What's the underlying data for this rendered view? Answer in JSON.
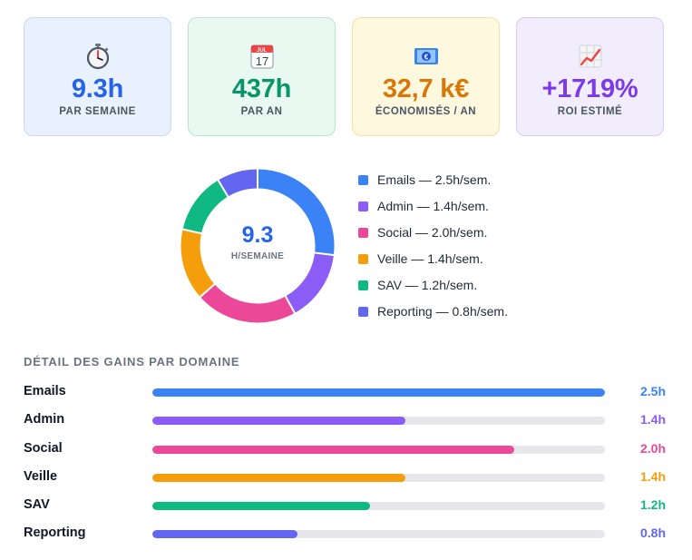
{
  "cards": [
    {
      "icon": "stopwatch-icon",
      "value": "9.3h",
      "label": "PAR SEMAINE",
      "color": "#2563eb",
      "bg": "#eaf1fe",
      "border": "#c7daf8"
    },
    {
      "icon": "calendar-icon",
      "value": "437h",
      "label": "PAR AN",
      "color": "#059669",
      "bg": "#e9f8f0",
      "border": "#b7e8cc"
    },
    {
      "icon": "money-icon",
      "value": "32,7 k€",
      "label": "ÉCONOMISÉS / AN",
      "color": "#d97706",
      "bg": "#fef8df",
      "border": "#f6dfa0"
    },
    {
      "icon": "chart-increasing-icon",
      "value": "+1719%",
      "label": "ROI ESTIMÉ",
      "color": "#7c3aed",
      "bg": "#f1edfd",
      "border": "#d6cbf6"
    }
  ],
  "chart_data": {
    "type": "pie",
    "center_value": "9.3",
    "center_unit": "H/SEMAINE",
    "series": [
      {
        "name": "Emails",
        "value": 2.5,
        "color": "#3b82f6",
        "legend": "Emails — 2.5h/sem."
      },
      {
        "name": "Admin",
        "value": 1.4,
        "color": "#8b5cf6",
        "legend": "Admin — 1.4h/sem."
      },
      {
        "name": "Social",
        "value": 2.0,
        "color": "#ec4899",
        "legend": "Social — 2.0h/sem."
      },
      {
        "name": "Veille",
        "value": 1.4,
        "color": "#f59e0b",
        "legend": "Veille — 1.4h/sem."
      },
      {
        "name": "SAV",
        "value": 1.2,
        "color": "#10b981",
        "legend": "SAV — 1.2h/sem."
      },
      {
        "name": "Reporting",
        "value": 0.8,
        "color": "#6366f1",
        "legend": "Reporting — 0.8h/sem."
      }
    ]
  },
  "detail": {
    "title": "DÉTAIL DES GAINS PAR DOMAINE",
    "max": 2.5,
    "rows": [
      {
        "name": "Emails",
        "value": 2.5,
        "label": "2.5h",
        "color": "#3b82f6"
      },
      {
        "name": "Admin",
        "value": 1.4,
        "label": "1.4h",
        "color": "#8b5cf6"
      },
      {
        "name": "Social",
        "value": 2.0,
        "label": "2.0h",
        "color": "#ec4899"
      },
      {
        "name": "Veille",
        "value": 1.4,
        "label": "1.4h",
        "color": "#f59e0b"
      },
      {
        "name": "SAV",
        "value": 1.2,
        "label": "1.2h",
        "color": "#10b981"
      },
      {
        "name": "Reporting",
        "value": 0.8,
        "label": "0.8h",
        "color": "#6366f1"
      }
    ]
  }
}
